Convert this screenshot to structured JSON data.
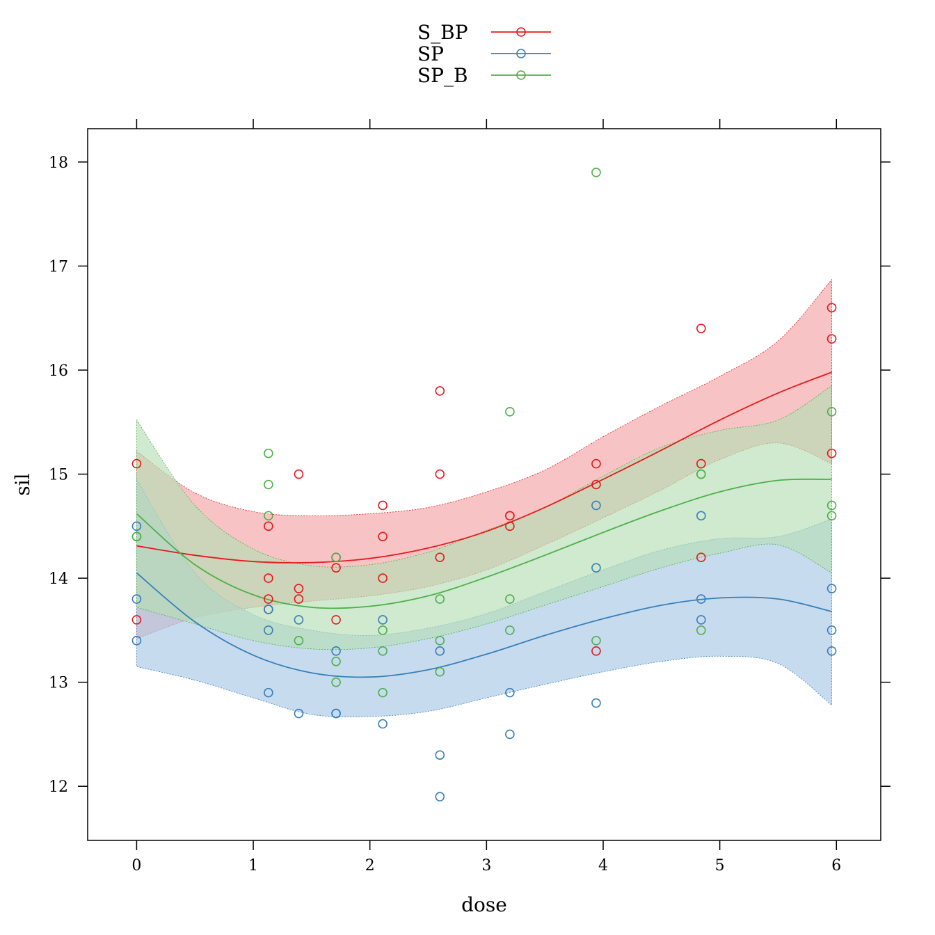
{
  "chart_data": {
    "type": "scatter",
    "xlabel": "dose",
    "ylabel": "sil",
    "xlim": [
      -0.42,
      6.38
    ],
    "ylim": [
      11.48,
      18.32
    ],
    "x_ticks": [
      0,
      1,
      2,
      3,
      4,
      5,
      6
    ],
    "y_ticks": [
      12,
      13,
      14,
      15,
      16,
      17,
      18
    ],
    "x_tick_labels": [
      "0",
      "1",
      "2",
      "3",
      "4",
      "5",
      "6"
    ],
    "y_tick_labels": [
      "12",
      "13",
      "14",
      "15",
      "16",
      "17",
      "18"
    ],
    "grid": false,
    "legend_position": "top-center",
    "series": [
      {
        "name": "S_BP",
        "color": "#e41a1c",
        "band_fill": "#f3a3a5",
        "points": [
          [
            0,
            15.1
          ],
          [
            0,
            13.6
          ],
          [
            1.13,
            14.5
          ],
          [
            1.13,
            14.0
          ],
          [
            1.13,
            13.8
          ],
          [
            1.13,
            13.7
          ],
          [
            1.39,
            15.0
          ],
          [
            1.39,
            13.9
          ],
          [
            1.39,
            13.8
          ],
          [
            1.71,
            14.2
          ],
          [
            1.71,
            14.1
          ],
          [
            1.71,
            13.6
          ],
          [
            2.11,
            14.7
          ],
          [
            2.11,
            14.4
          ],
          [
            2.11,
            14.0
          ],
          [
            2.6,
            15.8
          ],
          [
            2.6,
            15.0
          ],
          [
            2.6,
            14.2
          ],
          [
            3.2,
            14.6
          ],
          [
            3.2,
            14.6
          ],
          [
            3.2,
            14.5
          ],
          [
            3.94,
            15.1
          ],
          [
            3.94,
            14.9
          ],
          [
            3.94,
            13.3
          ],
          [
            4.84,
            16.4
          ],
          [
            4.84,
            15.1
          ],
          [
            4.84,
            14.2
          ],
          [
            5.96,
            16.6
          ],
          [
            5.96,
            16.3
          ],
          [
            5.96,
            15.2
          ]
        ],
        "fit": [
          [
            0,
            14.31
          ],
          [
            0.5,
            14.22
          ],
          [
            1,
            14.16
          ],
          [
            1.5,
            14.15
          ],
          [
            2,
            14.19
          ],
          [
            2.5,
            14.29
          ],
          [
            3,
            14.45
          ],
          [
            3.5,
            14.68
          ],
          [
            4,
            14.95
          ],
          [
            4.5,
            15.23
          ],
          [
            5,
            15.52
          ],
          [
            5.5,
            15.78
          ],
          [
            5.96,
            15.98
          ]
        ],
        "upper": [
          [
            0,
            15.22
          ],
          [
            0.5,
            14.82
          ],
          [
            1,
            14.64
          ],
          [
            1.5,
            14.6
          ],
          [
            2,
            14.62
          ],
          [
            2.5,
            14.68
          ],
          [
            3,
            14.83
          ],
          [
            3.5,
            15.04
          ],
          [
            4,
            15.36
          ],
          [
            4.5,
            15.66
          ],
          [
            5,
            15.94
          ],
          [
            5.5,
            16.28
          ],
          [
            5.96,
            16.87
          ]
        ],
        "lower": [
          [
            0,
            13.42
          ],
          [
            0.5,
            13.62
          ],
          [
            1,
            13.72
          ],
          [
            1.5,
            13.78
          ],
          [
            2,
            13.83
          ],
          [
            2.5,
            13.92
          ],
          [
            3,
            14.08
          ],
          [
            3.5,
            14.32
          ],
          [
            4,
            14.58
          ],
          [
            4.5,
            14.85
          ],
          [
            5,
            15.14
          ],
          [
            5.5,
            15.3
          ],
          [
            5.96,
            15.1
          ]
        ]
      },
      {
        "name": "SP",
        "color": "#377eb8",
        "band_fill": "#a9c7e6",
        "points": [
          [
            0,
            14.5
          ],
          [
            0,
            13.8
          ],
          [
            0,
            13.4
          ],
          [
            1.13,
            13.7
          ],
          [
            1.13,
            13.5
          ],
          [
            1.13,
            12.9
          ],
          [
            1.39,
            13.6
          ],
          [
            1.39,
            12.7
          ],
          [
            1.71,
            13.3
          ],
          [
            1.71,
            12.7
          ],
          [
            1.71,
            12.7
          ],
          [
            2.11,
            13.6
          ],
          [
            2.11,
            12.6
          ],
          [
            2.6,
            13.3
          ],
          [
            2.6,
            12.3
          ],
          [
            2.6,
            11.9
          ],
          [
            3.2,
            12.9
          ],
          [
            3.2,
            12.5
          ],
          [
            3.94,
            14.7
          ],
          [
            3.94,
            14.1
          ],
          [
            3.94,
            12.8
          ],
          [
            4.84,
            14.6
          ],
          [
            4.84,
            13.8
          ],
          [
            4.84,
            13.6
          ],
          [
            5.96,
            13.9
          ],
          [
            5.96,
            13.5
          ],
          [
            5.96,
            13.3
          ]
        ],
        "fit": [
          [
            0,
            14.05
          ],
          [
            0.5,
            13.58
          ],
          [
            1,
            13.26
          ],
          [
            1.5,
            13.09
          ],
          [
            2,
            13.05
          ],
          [
            2.5,
            13.12
          ],
          [
            3,
            13.27
          ],
          [
            3.5,
            13.45
          ],
          [
            4,
            13.61
          ],
          [
            4.5,
            13.74
          ],
          [
            5,
            13.81
          ],
          [
            5.5,
            13.8
          ],
          [
            5.96,
            13.68
          ]
        ],
        "upper": [
          [
            0,
            14.95
          ],
          [
            0.5,
            14.05
          ],
          [
            1,
            13.65
          ],
          [
            1.5,
            13.5
          ],
          [
            2,
            13.45
          ],
          [
            2.5,
            13.52
          ],
          [
            3,
            13.66
          ],
          [
            3.5,
            13.87
          ],
          [
            4,
            14.08
          ],
          [
            4.5,
            14.27
          ],
          [
            5,
            14.38
          ],
          [
            5.5,
            14.4
          ],
          [
            5.96,
            14.57
          ]
        ],
        "lower": [
          [
            0,
            13.15
          ],
          [
            0.5,
            13.02
          ],
          [
            1,
            12.85
          ],
          [
            1.5,
            12.69
          ],
          [
            2,
            12.67
          ],
          [
            2.5,
            12.72
          ],
          [
            3,
            12.85
          ],
          [
            3.5,
            12.98
          ],
          [
            4,
            13.1
          ],
          [
            4.5,
            13.2
          ],
          [
            5,
            13.25
          ],
          [
            5.5,
            13.18
          ],
          [
            5.96,
            12.78
          ]
        ]
      },
      {
        "name": "SP_B",
        "color": "#4daf4a",
        "band_fill": "#b5deb3",
        "points": [
          [
            0,
            14.4
          ],
          [
            0,
            14.4
          ],
          [
            1.13,
            15.2
          ],
          [
            1.13,
            14.9
          ],
          [
            1.13,
            14.6
          ],
          [
            1.39,
            13.4
          ],
          [
            1.71,
            14.2
          ],
          [
            1.71,
            13.2
          ],
          [
            1.71,
            13.0
          ],
          [
            2.11,
            13.5
          ],
          [
            2.11,
            13.3
          ],
          [
            2.11,
            12.9
          ],
          [
            2.6,
            13.8
          ],
          [
            2.6,
            13.4
          ],
          [
            2.6,
            13.1
          ],
          [
            3.2,
            15.6
          ],
          [
            3.2,
            13.8
          ],
          [
            3.2,
            13.5
          ],
          [
            3.94,
            17.9
          ],
          [
            3.94,
            13.4
          ],
          [
            4.84,
            15.0
          ],
          [
            4.84,
            15.0
          ],
          [
            4.84,
            13.5
          ],
          [
            5.96,
            15.6
          ],
          [
            5.96,
            14.7
          ],
          [
            5.96,
            14.6
          ]
        ],
        "fit": [
          [
            0,
            14.62
          ],
          [
            0.5,
            14.13
          ],
          [
            1,
            13.84
          ],
          [
            1.5,
            13.72
          ],
          [
            2,
            13.73
          ],
          [
            2.5,
            13.83
          ],
          [
            3,
            14.01
          ],
          [
            3.5,
            14.22
          ],
          [
            4,
            14.44
          ],
          [
            4.5,
            14.65
          ],
          [
            5,
            14.83
          ],
          [
            5.5,
            14.94
          ],
          [
            5.96,
            14.95
          ]
        ],
        "upper": [
          [
            0,
            15.52
          ],
          [
            0.5,
            14.7
          ],
          [
            1,
            14.28
          ],
          [
            1.5,
            14.12
          ],
          [
            2,
            14.13
          ],
          [
            2.5,
            14.25
          ],
          [
            3,
            14.46
          ],
          [
            3.5,
            14.68
          ],
          [
            4,
            14.98
          ],
          [
            4.5,
            15.26
          ],
          [
            5,
            15.42
          ],
          [
            5.5,
            15.52
          ],
          [
            5.96,
            15.85
          ]
        ],
        "lower": [
          [
            0,
            13.72
          ],
          [
            0.5,
            13.56
          ],
          [
            1,
            13.4
          ],
          [
            1.5,
            13.32
          ],
          [
            2,
            13.33
          ],
          [
            2.5,
            13.42
          ],
          [
            3,
            13.56
          ],
          [
            3.5,
            13.74
          ],
          [
            4,
            13.92
          ],
          [
            4.5,
            14.1
          ],
          [
            5,
            14.24
          ],
          [
            5.5,
            14.32
          ],
          [
            5.96,
            14.05
          ]
        ]
      }
    ]
  }
}
